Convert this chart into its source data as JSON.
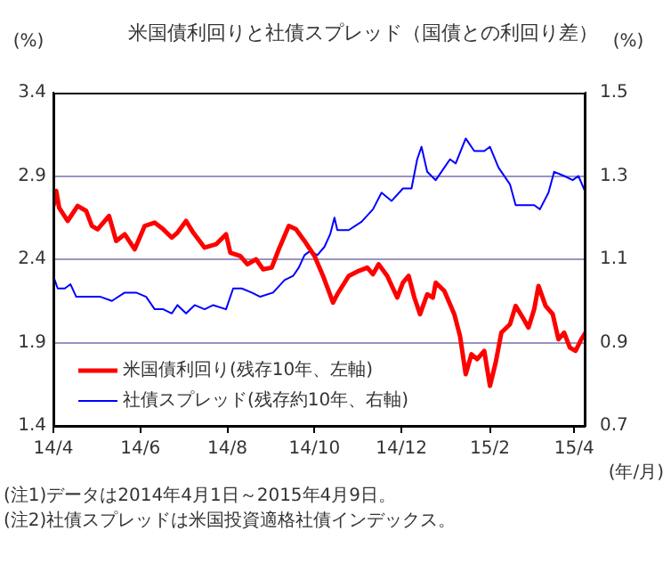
{
  "chart_data": {
    "type": "line",
    "title": "米国債利回りと社債スプレッド（国債との利回り差）",
    "ylabel": "(%)",
    "y2label": "(%)",
    "xlabel": "(年/月)",
    "xlim": [
      "2014-04-01",
      "2015-04-09"
    ],
    "xticks": [
      {
        "value": "2014-04-01",
        "label": "14/4"
      },
      {
        "value": "2014-06-01",
        "label": "14/6"
      },
      {
        "value": "2014-08-01",
        "label": "14/8"
      },
      {
        "value": "2014-10-01",
        "label": "14/10"
      },
      {
        "value": "2014-12-01",
        "label": "14/12"
      },
      {
        "value": "2015-02-01",
        "label": "15/2"
      },
      {
        "value": "2015-04-01",
        "label": "15/4"
      }
    ],
    "ylim": [
      1.4,
      3.4
    ],
    "yticks": [
      1.4,
      1.9,
      2.4,
      2.9,
      3.4
    ],
    "y2lim": [
      0.7,
      1.5
    ],
    "y2ticks": [
      0.7,
      0.9,
      1.1,
      1.3,
      1.5
    ],
    "grid": "y",
    "legend": "bottom left",
    "line_style": "solid",
    "marker": "none",
    "series": [
      {
        "name": "米国債利回り(残存10年、左軸)",
        "color": "#ff0000",
        "axis": "y",
        "x": [
          "2014-04-01",
          "2014-04-03",
          "2014-04-05",
          "2014-04-11",
          "2014-04-18",
          "2014-04-24",
          "2014-04-28",
          "2014-05-02",
          "2014-05-10",
          "2014-05-15",
          "2014-05-21",
          "2014-05-28",
          "2014-06-04",
          "2014-06-11",
          "2014-06-17",
          "2014-06-23",
          "2014-06-27",
          "2014-07-03",
          "2014-07-08",
          "2014-07-16",
          "2014-07-24",
          "2014-07-31",
          "2014-08-03",
          "2014-08-10",
          "2014-08-15",
          "2014-08-21",
          "2014-08-26",
          "2014-09-01",
          "2014-09-06",
          "2014-09-13",
          "2014-09-18",
          "2014-09-24",
          "2014-10-01",
          "2014-10-07",
          "2014-10-14",
          "2014-10-17",
          "2014-10-25",
          "2014-11-01",
          "2014-11-07",
          "2014-11-11",
          "2014-11-15",
          "2014-11-21",
          "2014-11-28",
          "2014-12-02",
          "2014-12-06",
          "2014-12-10",
          "2014-12-14",
          "2014-12-19",
          "2014-12-23",
          "2014-12-25",
          "2014-12-31",
          "2015-01-07",
          "2015-01-11",
          "2015-01-15",
          "2015-01-19",
          "2015-01-23",
          "2015-01-28",
          "2015-02-01",
          "2015-02-05",
          "2015-02-09",
          "2015-02-15",
          "2015-02-19",
          "2015-02-24",
          "2015-02-28",
          "2015-03-04",
          "2015-03-07",
          "2015-03-12",
          "2015-03-17",
          "2015-03-21",
          "2015-03-25",
          "2015-03-29",
          "2015-04-02",
          "2015-04-06",
          "2015-04-09"
        ],
        "values": [
          2.72,
          2.81,
          2.71,
          2.63,
          2.72,
          2.69,
          2.6,
          2.58,
          2.66,
          2.51,
          2.55,
          2.46,
          2.6,
          2.62,
          2.58,
          2.53,
          2.56,
          2.63,
          2.56,
          2.47,
          2.49,
          2.55,
          2.44,
          2.42,
          2.37,
          2.4,
          2.34,
          2.35,
          2.46,
          2.6,
          2.58,
          2.51,
          2.42,
          2.3,
          2.14,
          2.19,
          2.3,
          2.33,
          2.35,
          2.31,
          2.37,
          2.3,
          2.17,
          2.26,
          2.3,
          2.17,
          2.07,
          2.19,
          2.17,
          2.26,
          2.21,
          2.07,
          1.94,
          1.71,
          1.83,
          1.8,
          1.85,
          1.64,
          1.78,
          1.96,
          2.01,
          2.12,
          2.05,
          1.99,
          2.1,
          2.24,
          2.12,
          2.07,
          1.92,
          1.96,
          1.87,
          1.85,
          1.92,
          1.96
        ]
      },
      {
        "name": "社債スプレッド(残存約10年、右軸)",
        "color": "#0000ff",
        "axis": "y2",
        "x": [
          "2014-04-01",
          "2014-04-04",
          "2014-04-09",
          "2014-04-13",
          "2014-04-17",
          "2014-04-26",
          "2014-05-04",
          "2014-05-12",
          "2014-05-21",
          "2014-05-29",
          "2014-06-05",
          "2014-06-11",
          "2014-06-17",
          "2014-06-23",
          "2014-06-27",
          "2014-07-03",
          "2014-07-09",
          "2014-07-16",
          "2014-07-22",
          "2014-07-31",
          "2014-08-05",
          "2014-08-11",
          "2014-08-18",
          "2014-08-24",
          "2014-09-02",
          "2014-09-10",
          "2014-09-16",
          "2014-09-20",
          "2014-09-24",
          "2014-09-28",
          "2014-10-03",
          "2014-10-08",
          "2014-10-12",
          "2014-10-15",
          "2014-10-17",
          "2014-10-25",
          "2014-11-03",
          "2014-11-11",
          "2014-11-17",
          "2014-11-24",
          "2014-12-02",
          "2014-12-08",
          "2014-12-12",
          "2014-12-15",
          "2014-12-19",
          "2014-12-25",
          "2014-12-31",
          "2015-01-04",
          "2015-01-08",
          "2015-01-15",
          "2015-01-21",
          "2015-01-28",
          "2015-02-01",
          "2015-02-07",
          "2015-02-15",
          "2015-02-19",
          "2015-02-25",
          "2015-03-04",
          "2015-03-08",
          "2015-03-14",
          "2015-03-18",
          "2015-03-25",
          "2015-03-31",
          "2015-04-04",
          "2015-04-09"
        ],
        "values": [
          1.06,
          1.03,
          1.03,
          1.04,
          1.01,
          1.01,
          1.01,
          1.0,
          1.02,
          1.02,
          1.01,
          0.98,
          0.98,
          0.97,
          0.99,
          0.97,
          0.99,
          0.98,
          0.99,
          0.98,
          1.03,
          1.03,
          1.02,
          1.01,
          1.02,
          1.05,
          1.06,
          1.08,
          1.11,
          1.12,
          1.11,
          1.13,
          1.16,
          1.2,
          1.17,
          1.17,
          1.19,
          1.22,
          1.26,
          1.24,
          1.27,
          1.27,
          1.34,
          1.37,
          1.31,
          1.29,
          1.32,
          1.34,
          1.33,
          1.39,
          1.36,
          1.36,
          1.37,
          1.32,
          1.28,
          1.23,
          1.23,
          1.23,
          1.22,
          1.26,
          1.31,
          1.3,
          1.29,
          1.3,
          1.26
        ]
      }
    ],
    "annotations": [
      "(注1)データは2014年4月1日～2015年4月9日。",
      "(注2)社債スプレッドは米国投資適格社債インデックス。"
    ]
  }
}
